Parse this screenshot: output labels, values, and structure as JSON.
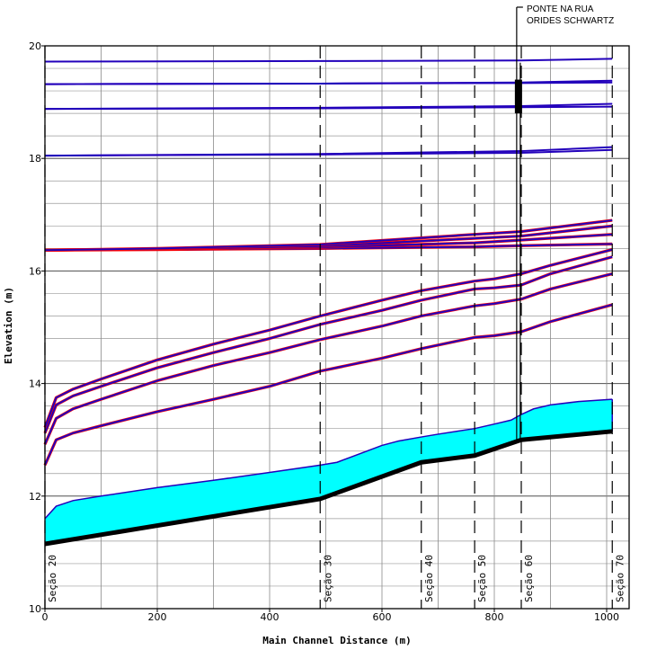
{
  "chart_data": {
    "type": "line",
    "title": "",
    "xlabel": "Main Channel Distance (m)",
    "ylabel": "Elevation (m)",
    "xlim": [
      0,
      1040
    ],
    "ylim": [
      10,
      20
    ],
    "xticks": [
      0,
      200,
      400,
      600,
      800,
      1000
    ],
    "yticks": [
      10,
      12,
      14,
      16,
      18,
      20
    ],
    "grid": true,
    "colors": {
      "ground": "#000000",
      "water_fill": "#00ffff",
      "profile": "#2200bb",
      "profile_red": "#ff0000",
      "section_line": "#000000"
    },
    "sections": [
      {
        "x": 0,
        "label": "Seção 20"
      },
      {
        "x": 490,
        "label": "Seção 30"
      },
      {
        "x": 670,
        "label": "Seção 40"
      },
      {
        "x": 765,
        "label": "Seção 50"
      },
      {
        "x": 848,
        "label": "Seção 60"
      },
      {
        "x": 1010,
        "label": "Seção 70"
      }
    ],
    "bridge": {
      "x": 843,
      "label_line1": "PONTE NA RUA",
      "label_line2": "ORIDES SCHWARTZ"
    },
    "ground": {
      "x": [
        0,
        490,
        670,
        765,
        848,
        1010
      ],
      "y": [
        11.15,
        11.95,
        12.6,
        12.72,
        13.0,
        13.15
      ]
    },
    "water_surface": {
      "x": [
        0,
        20,
        50,
        100,
        200,
        300,
        400,
        490,
        520,
        600,
        630,
        670,
        700,
        765,
        800,
        830,
        848,
        870,
        900,
        950,
        1010
      ],
      "y": [
        11.6,
        11.82,
        11.92,
        12.0,
        12.15,
        12.28,
        12.42,
        12.55,
        12.6,
        12.9,
        12.98,
        13.05,
        13.1,
        13.2,
        13.28,
        13.35,
        13.45,
        13.55,
        13.62,
        13.68,
        13.72
      ]
    },
    "series": [
      {
        "x": [
          0,
          20,
          50,
          100,
          200,
          300,
          400,
          490,
          600,
          670,
          765,
          800,
          848,
          900,
          1010
        ],
        "y": [
          12.55,
          13.0,
          13.12,
          13.25,
          13.5,
          13.72,
          13.95,
          14.22,
          14.45,
          14.62,
          14.82,
          14.85,
          14.92,
          15.1,
          15.4
        ]
      },
      {
        "x": [
          0,
          20,
          50,
          100,
          200,
          300,
          400,
          490,
          600,
          670,
          765,
          800,
          848,
          900,
          1010
        ],
        "y": [
          12.92,
          13.38,
          13.55,
          13.72,
          14.05,
          14.32,
          14.55,
          14.78,
          15.02,
          15.2,
          15.38,
          15.42,
          15.5,
          15.68,
          15.95
        ]
      },
      {
        "x": [
          0,
          20,
          50,
          100,
          200,
          300,
          400,
          490,
          600,
          670,
          765,
          800,
          848,
          900,
          1010
        ],
        "y": [
          13.12,
          13.62,
          13.78,
          13.95,
          14.28,
          14.55,
          14.8,
          15.05,
          15.3,
          15.48,
          15.68,
          15.7,
          15.75,
          15.95,
          16.25
        ]
      },
      {
        "x": [
          0,
          20,
          50,
          100,
          200,
          300,
          400,
          490,
          600,
          670,
          765,
          800,
          848,
          900,
          1010
        ],
        "y": [
          13.22,
          13.75,
          13.9,
          14.08,
          14.42,
          14.7,
          14.95,
          15.2,
          15.48,
          15.65,
          15.82,
          15.86,
          15.95,
          16.1,
          16.38
        ]
      },
      {
        "x": [
          0,
          200,
          490,
          765,
          848,
          1010
        ],
        "y": [
          16.37,
          16.38,
          16.4,
          16.43,
          16.45,
          16.48
        ]
      },
      {
        "x": [
          0,
          200,
          490,
          765,
          848,
          1010
        ],
        "y": [
          16.37,
          16.39,
          16.42,
          16.5,
          16.55,
          16.65
        ]
      },
      {
        "x": [
          0,
          200,
          490,
          765,
          848,
          1010
        ],
        "y": [
          16.37,
          16.39,
          16.44,
          16.58,
          16.62,
          16.8
        ]
      },
      {
        "x": [
          0,
          200,
          490,
          765,
          848,
          1010
        ],
        "y": [
          16.37,
          16.4,
          16.47,
          16.65,
          16.7,
          16.9
        ]
      },
      {
        "x": [
          0,
          490,
          848,
          1010
        ],
        "y": [
          18.05,
          18.08,
          18.13,
          18.2
        ]
      },
      {
        "x": [
          0,
          490,
          848,
          1010
        ],
        "y": [
          18.05,
          18.07,
          18.1,
          18.15
        ]
      },
      {
        "x": [
          0,
          490,
          848,
          1010
        ],
        "y": [
          18.88,
          18.9,
          18.93,
          18.97
        ]
      },
      {
        "x": [
          0,
          490,
          848,
          1010
        ],
        "y": [
          18.88,
          18.89,
          18.91,
          18.92
        ]
      },
      {
        "x": [
          0,
          490,
          848,
          1010
        ],
        "y": [
          19.32,
          19.33,
          19.35,
          19.38
        ]
      },
      {
        "x": [
          0,
          490,
          848,
          1010
        ],
        "y": [
          19.32,
          19.33,
          19.34,
          19.35
        ]
      },
      {
        "x": [
          0,
          490,
          848,
          1010
        ],
        "y": [
          19.72,
          19.73,
          19.74,
          19.77
        ]
      }
    ]
  }
}
